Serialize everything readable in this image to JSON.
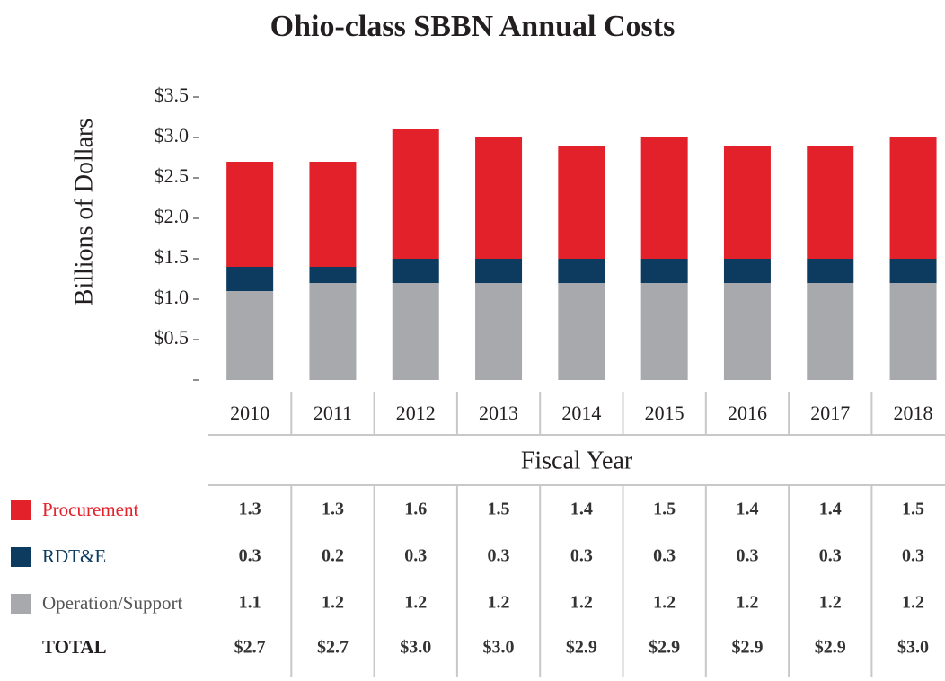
{
  "chart_data": {
    "type": "stacked_bar",
    "title": "Ohio-class SBBN Annual Costs",
    "y_label": "Billions of Dollars",
    "x_label": "Fiscal Year",
    "categories": [
      "2010",
      "2011",
      "2012",
      "2013",
      "2014",
      "2015",
      "2016",
      "2017",
      "2018"
    ],
    "series": [
      {
        "name": "Procurement",
        "color": "#e3212b",
        "values": [
          1.3,
          1.3,
          1.6,
          1.5,
          1.4,
          1.5,
          1.4,
          1.4,
          1.5
        ]
      },
      {
        "name": "RDT&E",
        "color": "#0d3b5f",
        "values": [
          0.3,
          0.2,
          0.3,
          0.3,
          0.3,
          0.3,
          0.3,
          0.3,
          0.3
        ]
      },
      {
        "name": "Operation/Support",
        "color": "#a7a9ac",
        "values": [
          1.1,
          1.2,
          1.2,
          1.2,
          1.2,
          1.2,
          1.2,
          1.2,
          1.2
        ]
      }
    ],
    "totals": {
      "label": "TOTAL",
      "values": [
        2.7,
        2.7,
        3.0,
        3.0,
        2.9,
        2.9,
        2.9,
        2.9,
        3.0
      ],
      "value_labels": [
        "$2.7",
        "$2.7",
        "$3.0",
        "$3.0",
        "$2.9",
        "$2.9",
        "$2.9",
        "$2.9",
        "$3.0"
      ]
    },
    "ylim": [
      0,
      3.5
    ],
    "yticks": [
      {
        "value": 0.5,
        "label": "$0.5"
      },
      {
        "value": 1.0,
        "label": "$1.0"
      },
      {
        "value": 1.5,
        "label": "$1.5"
      },
      {
        "value": 2.0,
        "label": "$2.0"
      },
      {
        "value": 2.5,
        "label": "$2.5"
      },
      {
        "value": 3.0,
        "label": "$3.0"
      },
      {
        "value": 3.5,
        "label": "$3.5"
      }
    ]
  }
}
